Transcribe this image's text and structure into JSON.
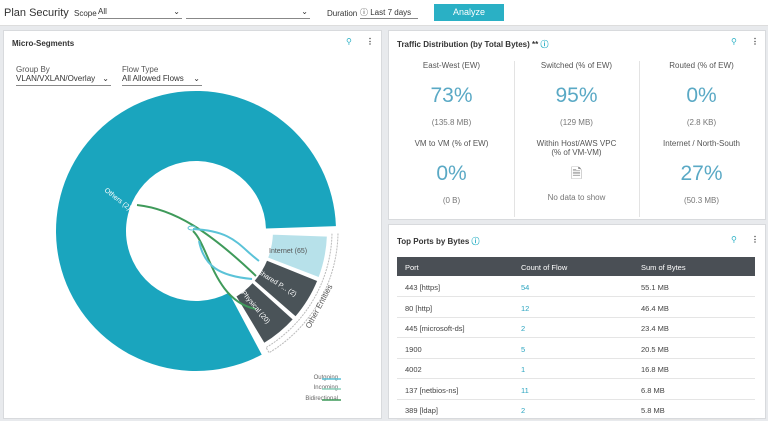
{
  "header": {
    "title": "Plan Security",
    "scope_label": "Scope",
    "scope_value": "All",
    "duration_label": "Duration",
    "duration_value": "Last 7 days",
    "button": "Analyze"
  },
  "micro_segments": {
    "title": "Micro-Segments",
    "group_by_label": "Group By",
    "group_by_value": "VLAN/VXLAN/Overlay",
    "flow_type_label": "Flow Type",
    "flow_type_value": "All Allowed Flows",
    "segments": [
      "Others (2)",
      "Internet (65)",
      "Shared P... (2)",
      "Physical (20)"
    ],
    "group_label": "Other Entities",
    "legend": [
      "Outgoing",
      "Incoming",
      "Bidirectional"
    ]
  },
  "traffic": {
    "title": "Traffic Distribution (by Total Bytes) **",
    "cells": [
      {
        "label": "East-West (EW)",
        "value": "73%",
        "detail": "(135.8 MB)"
      },
      {
        "label": "Switched (% of EW)",
        "value": "95%",
        "detail": "(129 MB)"
      },
      {
        "label": "Routed (% of EW)",
        "value": "0%",
        "detail": "(2.8 KB)"
      },
      {
        "label": "VM to VM (% of EW)",
        "value": "0%",
        "detail": "(0 B)"
      },
      {
        "label": "Within Host/AWS VPC (% of VM-VM)",
        "empty": "No data to show"
      },
      {
        "label": "Internet / North-South",
        "value": "27%",
        "detail": "(50.3 MB)"
      }
    ]
  },
  "ports": {
    "title": "Top Ports by Bytes",
    "columns": [
      "Port",
      "Count of Flow",
      "Sum of Bytes"
    ],
    "rows": [
      [
        "443 [https]",
        "54",
        "55.1 MB"
      ],
      [
        "80 [http]",
        "12",
        "46.4 MB"
      ],
      [
        "445 [microsoft-ds]",
        "2",
        "23.4 MB"
      ],
      [
        "1900",
        "5",
        "20.5 MB"
      ],
      [
        "4002",
        "1",
        "16.8 MB"
      ],
      [
        "137 [netbios-ns]",
        "11",
        "6.8 MB"
      ],
      [
        "389 [ldap]",
        "2",
        "5.8 MB"
      ]
    ]
  }
}
